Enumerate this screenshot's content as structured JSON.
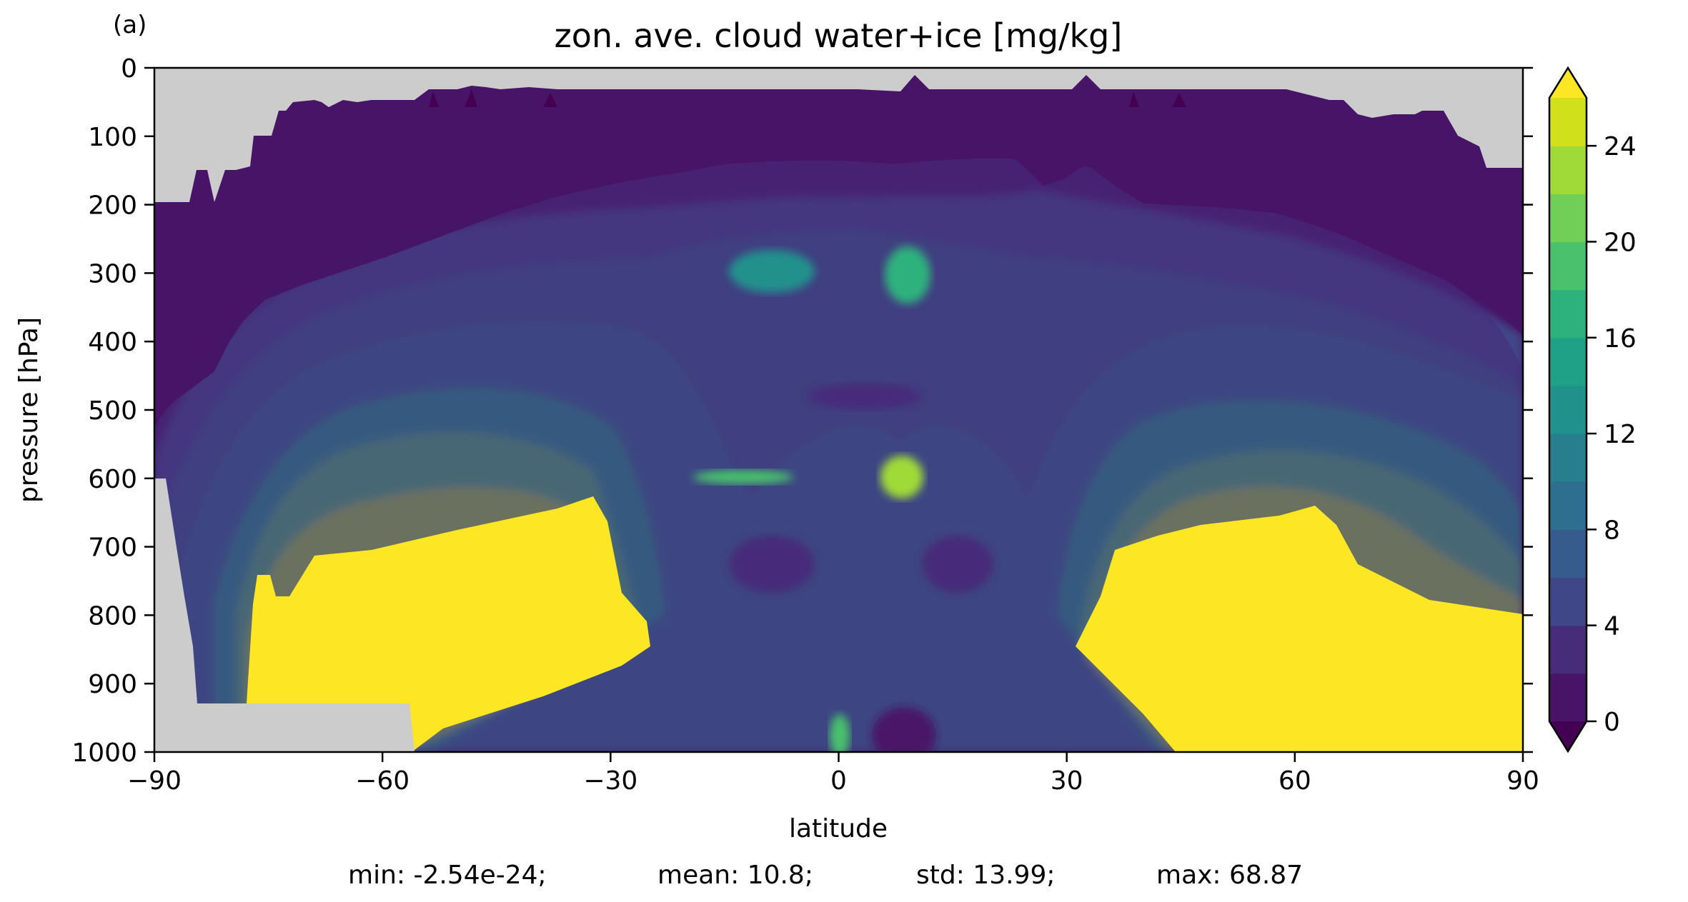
{
  "chart_data": {
    "type": "contour",
    "panel_label": "(a)",
    "title": "zon. ave. cloud water+ice [mg/kg]",
    "xlabel": "latitude",
    "ylabel": "pressure [hPa]",
    "xlim": [
      -90,
      90
    ],
    "ylim": [
      1000,
      0
    ],
    "y_inverted": true,
    "xticks": [
      -90,
      -60,
      -30,
      0,
      30,
      60,
      90
    ],
    "xtick_labels": [
      "−90",
      "−60",
      "−30",
      "0",
      "30",
      "60",
      "90"
    ],
    "yticks": [
      0,
      100,
      200,
      300,
      400,
      500,
      600,
      700,
      800,
      900,
      1000
    ],
    "ytick_labels": [
      "0",
      "100",
      "200",
      "300",
      "400",
      "500",
      "600",
      "700",
      "800",
      "900",
      "1000"
    ],
    "colorbar": {
      "levels": [
        0,
        2,
        4,
        6,
        8,
        10,
        12,
        14,
        16,
        18,
        20,
        22,
        24
      ],
      "tick_values": [
        0,
        4,
        8,
        12,
        16,
        20,
        24
      ],
      "tick_labels": [
        "0",
        "4",
        "8",
        "12",
        "16",
        "20",
        "24"
      ],
      "extend": "both",
      "under_color": "#440154",
      "over_color": "#fde725",
      "colors": [
        "#481467",
        "#472c7a",
        "#3f4788",
        "#365c8d",
        "#2e6e8e",
        "#277f8e",
        "#21918c",
        "#1fa187",
        "#2db27d",
        "#4ac16d",
        "#71cf57",
        "#a0da39",
        "#d0e11c"
      ]
    },
    "missing_color": "#cccccc",
    "grid": false,
    "field_description_points": [
      {
        "lat": -45,
        "p": 800,
        "value": 26
      },
      {
        "lat": -45,
        "p": 620,
        "value": 20
      },
      {
        "lat": -45,
        "p": 450,
        "value": 8
      },
      {
        "lat": -10,
        "p": 300,
        "value": 16
      },
      {
        "lat": 10,
        "p": 300,
        "value": 18
      },
      {
        "lat": 10,
        "p": 600,
        "value": 22
      },
      {
        "lat": 10,
        "p": 500,
        "value": 4
      },
      {
        "lat": 60,
        "p": 800,
        "value": 26
      },
      {
        "lat": 60,
        "p": 620,
        "value": 20
      },
      {
        "lat": 0,
        "p": 150,
        "value": 1
      },
      {
        "lat": 0,
        "p": 980,
        "value": 18
      }
    ]
  },
  "stats": {
    "min": "min: -2.54e-24;",
    "mean": "mean: 10.8;",
    "std": "std: 13.99;",
    "max": "max: 68.87"
  }
}
